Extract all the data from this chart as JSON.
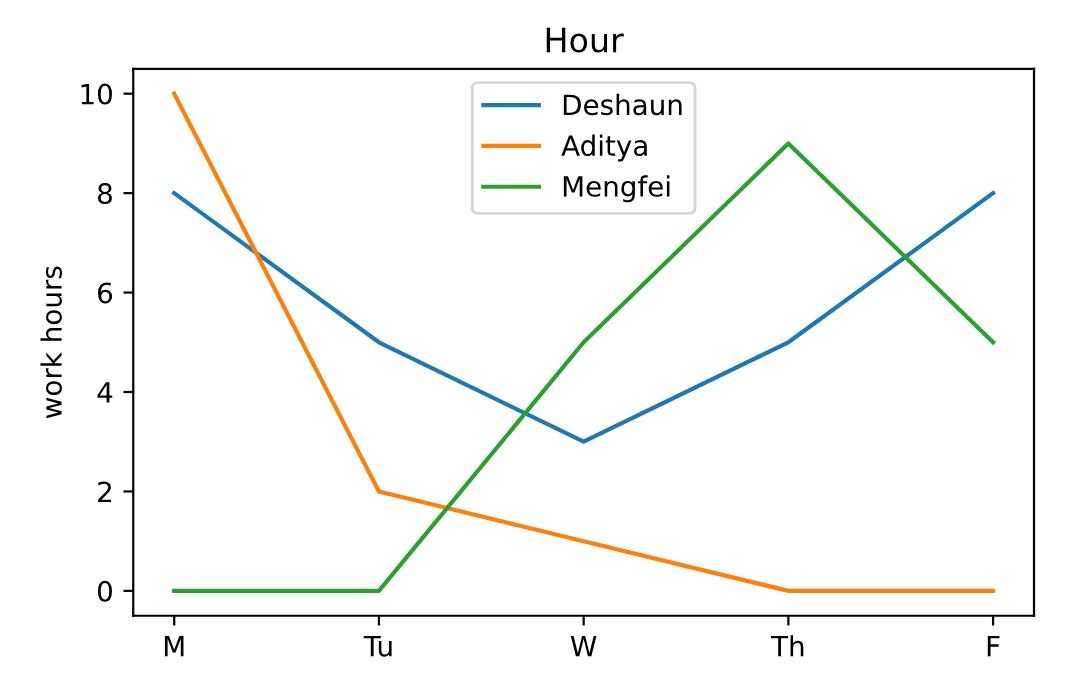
{
  "chart_data": {
    "type": "line",
    "title": "Hour",
    "ylabel": "work hours",
    "categories": [
      "M",
      "Tu",
      "W",
      "Th",
      "F"
    ],
    "series": [
      {
        "name": "Deshaun",
        "color": "#1f77b4",
        "values": [
          8,
          5,
          3,
          5,
          8
        ]
      },
      {
        "name": "Aditya",
        "color": "#ff7f0e",
        "values": [
          10,
          2,
          1,
          0,
          0
        ]
      },
      {
        "name": "Mengfei",
        "color": "#2ca02c",
        "values": [
          0,
          0,
          5,
          9,
          5
        ]
      }
    ],
    "ylim": [
      -0.5,
      10.5
    ],
    "yticks": [
      0,
      2,
      4,
      6,
      8,
      10
    ],
    "legend": "top",
    "grid": false
  }
}
